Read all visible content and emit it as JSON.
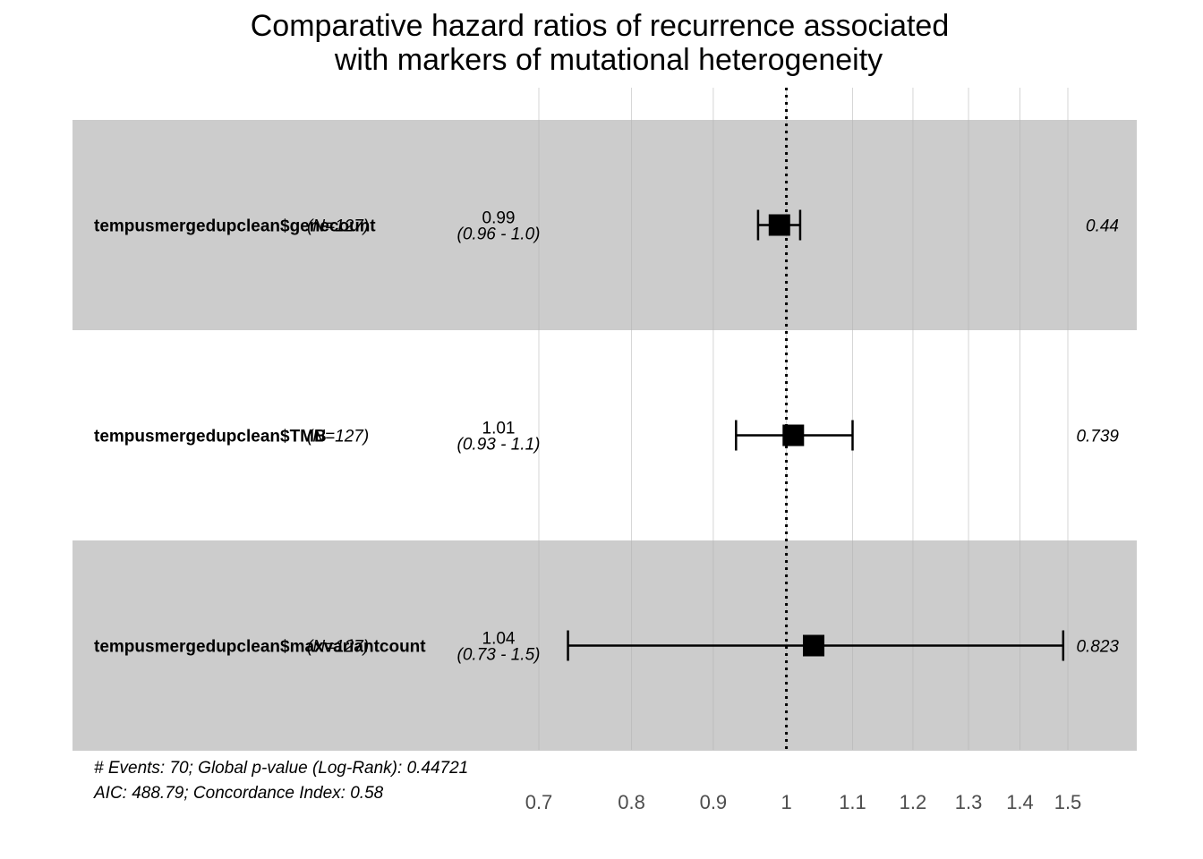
{
  "chart_data": {
    "type": "forest",
    "title": "Comparative hazard ratios of recurrence associated with markers of mutational heterogeneity",
    "title_lines": [
      "Comparative hazard ratios of recurrence associated",
      "with markers of mutational heterogeneity"
    ],
    "x_scale": "log",
    "xlim": [
      0.7,
      1.5
    ],
    "ticks": [
      0.7,
      0.8,
      0.9,
      1,
      1.1,
      1.2,
      1.3,
      1.4,
      1.5
    ],
    "tick_labels": [
      "0.7",
      "0.8",
      "0.9",
      "1",
      "1.1",
      "1.2",
      "1.3",
      "1.4",
      "1.5"
    ],
    "reference_line": 1,
    "rows": [
      {
        "variable": "tempusmergedupclean$genecount",
        "n_label": "(N=127)",
        "hr": 0.99,
        "hr_label": "0.99",
        "ci_low": 0.96,
        "ci_high": 1.02,
        "ci_label": "(0.96 - 1.0)",
        "p_label": "0.44",
        "shaded": true
      },
      {
        "variable": "tempusmergedupclean$TMB",
        "n_label": "(N=127)",
        "hr": 1.01,
        "hr_label": "1.01",
        "ci_low": 0.93,
        "ci_high": 1.1,
        "ci_label": "(0.93 - 1.1)",
        "p_label": "0.739",
        "shaded": false
      },
      {
        "variable": "tempusmergedupclean$maxvariantcount",
        "n_label": "(N=127)",
        "hr": 1.04,
        "hr_label": "1.04",
        "ci_low": 0.73,
        "ci_high": 1.49,
        "ci_label": "(0.73 - 1.5)",
        "p_label": "0.823",
        "shaded": true
      }
    ],
    "footnotes": [
      "# Events: 70; Global p-value (Log-Rank): 0.44721",
      "AIC: 488.79; Concordance Index: 0.58"
    ],
    "colors": {
      "band": "#cccccc",
      "grid": "#b3b3b3",
      "marker": "#000000",
      "tick_text": "#4d4d4d"
    }
  }
}
